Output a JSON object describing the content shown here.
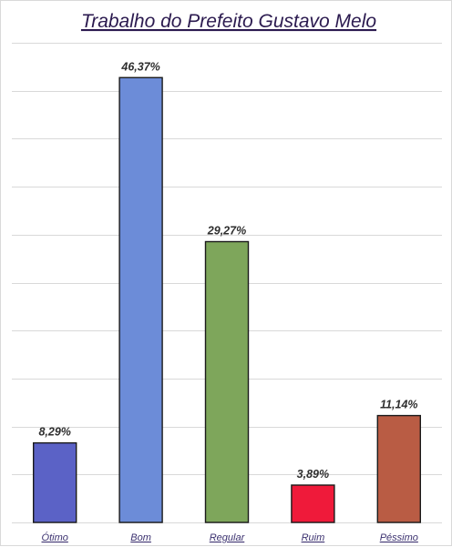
{
  "chart_data": {
    "type": "bar",
    "title": "Trabalho do Prefeito Gustavo Melo",
    "categories": [
      "Ótimo",
      "Bom",
      "Regular",
      "Ruim",
      "Péssimo"
    ],
    "values": [
      8.29,
      46.37,
      29.27,
      3.89,
      11.14
    ],
    "value_labels": [
      "8,29%",
      "46,37%",
      "29,27%",
      "3,89%",
      "11,14%"
    ],
    "colors": [
      "#5b62c6",
      "#6c8cd8",
      "#7ea65b",
      "#ef1a3a",
      "#b95c44"
    ],
    "ylim": [
      0,
      50
    ],
    "grid": true,
    "legend": "none"
  }
}
